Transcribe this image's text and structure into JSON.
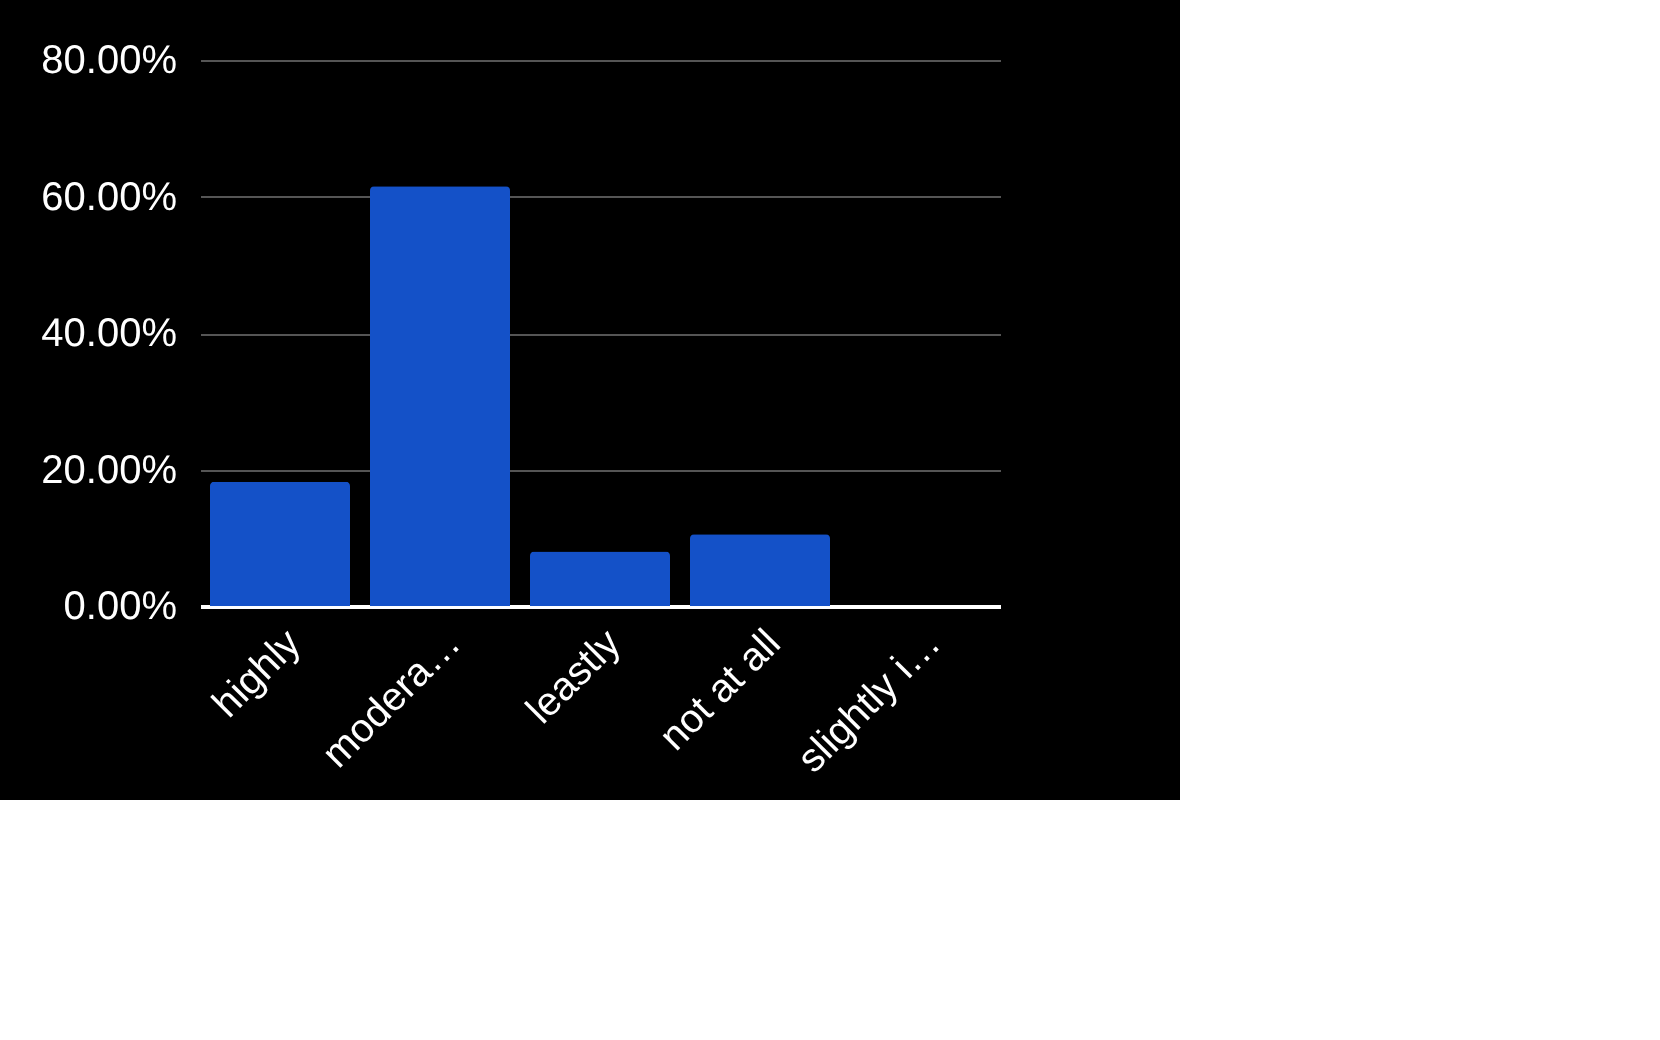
{
  "chart_data": {
    "type": "bar",
    "categories": [
      "highly",
      "modera…",
      "leastly",
      "not at all",
      "slightly i…"
    ],
    "series": [
      {
        "color": "#1451c8",
        "values": [
          18.2,
          61.5,
          8,
          10.5,
          0
        ]
      }
    ],
    "ylim": [
      0,
      80
    ],
    "yticks": [
      {
        "value": 0,
        "label": "0.00%"
      },
      {
        "value": 20,
        "label": "20.00%"
      },
      {
        "value": 40,
        "label": "40.00%"
      },
      {
        "value": 60,
        "label": "60.00%"
      },
      {
        "value": 80,
        "label": "80.00%"
      }
    ],
    "grid": "y"
  }
}
